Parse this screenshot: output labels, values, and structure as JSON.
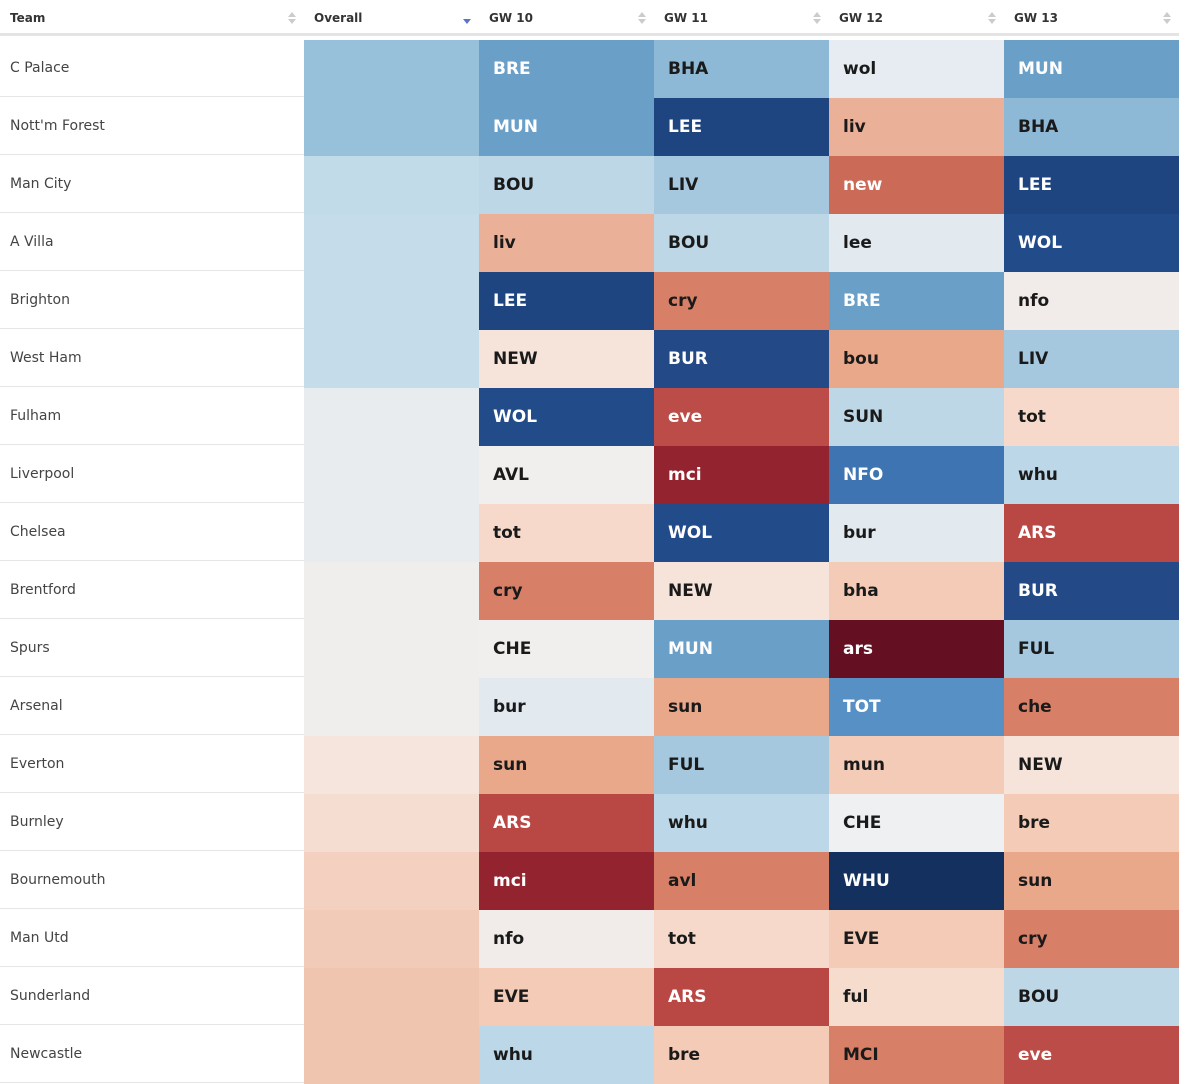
{
  "table": {
    "headers": [
      "Team",
      "Overall",
      "GW 10",
      "GW 11",
      "GW 12",
      "GW 13"
    ],
    "sorted_column": 1,
    "rows": [
      {
        "team": "C Palace",
        "overall_color": "#97c0da",
        "fixtures": [
          {
            "label": "BRE",
            "color": "#6a9fc8"
          },
          {
            "label": "BHA",
            "color": "#8db8d6"
          },
          {
            "label": "wol",
            "color": "#e6ecf1"
          },
          {
            "label": "MUN",
            "color": "#6a9fc8"
          }
        ]
      },
      {
        "team": "Nott'm Forest",
        "overall_color": "#97c0da",
        "fixtures": [
          {
            "label": "MUN",
            "color": "#6a9fc8"
          },
          {
            "label": "LEE",
            "color": "#1f4580"
          },
          {
            "label": "liv",
            "color": "#ebb198"
          },
          {
            "label": "BHA",
            "color": "#8db8d6"
          }
        ]
      },
      {
        "team": "Man City",
        "overall_color": "#c2dbe9",
        "fixtures": [
          {
            "label": "BOU",
            "color": "#bdd7e7"
          },
          {
            "label": "LIV",
            "color": "#a6c8df"
          },
          {
            "label": "new",
            "color": "#cc6a58"
          },
          {
            "label": "LEE",
            "color": "#1f4580"
          }
        ]
      },
      {
        "team": "A Villa",
        "overall_color": "#c5dcea",
        "fixtures": [
          {
            "label": "liv",
            "color": "#ebb198"
          },
          {
            "label": "BOU",
            "color": "#bdd7e7"
          },
          {
            "label": "lee",
            "color": "#e2eaf0"
          },
          {
            "label": "WOL",
            "color": "#224b8a"
          }
        ]
      },
      {
        "team": "Brighton",
        "overall_color": "#c5dcea",
        "fixtures": [
          {
            "label": "LEE",
            "color": "#1f4580"
          },
          {
            "label": "cry",
            "color": "#d88067"
          },
          {
            "label": "BRE",
            "color": "#6a9fc8"
          },
          {
            "label": "nfo",
            "color": "#f1ece9"
          }
        ]
      },
      {
        "team": "West Ham",
        "overall_color": "#c5dcea",
        "fixtures": [
          {
            "label": "NEW",
            "color": "#f6e3da"
          },
          {
            "label": "BUR",
            "color": "#234a86"
          },
          {
            "label": "bou",
            "color": "#eaa88b"
          },
          {
            "label": "LIV",
            "color": "#a6c8df"
          }
        ]
      },
      {
        "team": "Fulham",
        "overall_color": "#e8ecef",
        "fixtures": [
          {
            "label": "WOL",
            "color": "#224b8a"
          },
          {
            "label": "eve",
            "color": "#bc4c47"
          },
          {
            "label": "SUN",
            "color": "#bdd7e7"
          },
          {
            "label": "tot",
            "color": "#f6d9ca"
          }
        ]
      },
      {
        "team": "Liverpool",
        "overall_color": "#e8ecef",
        "fixtures": [
          {
            "label": "AVL",
            "color": "#f1efee"
          },
          {
            "label": "mci",
            "color": "#93242f"
          },
          {
            "label": "NFO",
            "color": "#3f74b2"
          },
          {
            "label": "whu",
            "color": "#bcd7e7"
          }
        ]
      },
      {
        "team": "Chelsea",
        "overall_color": "#e8ecef",
        "fixtures": [
          {
            "label": "tot",
            "color": "#f6d9ca"
          },
          {
            "label": "WOL",
            "color": "#224b8a"
          },
          {
            "label": "bur",
            "color": "#e2eaf0"
          },
          {
            "label": "ARS",
            "color": "#b94845"
          }
        ]
      },
      {
        "team": "Brentford",
        "overall_color": "#efeeed",
        "fixtures": [
          {
            "label": "cry",
            "color": "#d88067"
          },
          {
            "label": "NEW",
            "color": "#f6e3da"
          },
          {
            "label": "bha",
            "color": "#f3cbb6"
          },
          {
            "label": "BUR",
            "color": "#234a86"
          }
        ]
      },
      {
        "team": "Spurs",
        "overall_color": "#efeeed",
        "fixtures": [
          {
            "label": "CHE",
            "color": "#f1efee"
          },
          {
            "label": "MUN",
            "color": "#6a9fc8"
          },
          {
            "label": "ars",
            "color": "#640f22"
          },
          {
            "label": "FUL",
            "color": "#a6c8df"
          }
        ]
      },
      {
        "team": "Arsenal",
        "overall_color": "#efeeed",
        "fixtures": [
          {
            "label": "bur",
            "color": "#e2eaf0"
          },
          {
            "label": "sun",
            "color": "#eaa88b"
          },
          {
            "label": "TOT",
            "color": "#5690c4"
          },
          {
            "label": "che",
            "color": "#d88067"
          }
        ]
      },
      {
        "team": "Everton",
        "overall_color": "#f6e5dd",
        "fixtures": [
          {
            "label": "sun",
            "color": "#eaa88b"
          },
          {
            "label": "FUL",
            "color": "#a6c8df"
          },
          {
            "label": "mun",
            "color": "#f3cbb6"
          },
          {
            "label": "NEW",
            "color": "#f6e3da"
          }
        ]
      },
      {
        "team": "Burnley",
        "overall_color": "#f5ddd1",
        "fixtures": [
          {
            "label": "ARS",
            "color": "#b94845"
          },
          {
            "label": "whu",
            "color": "#bcd7e7"
          },
          {
            "label": "CHE",
            "color": "#eff0f1"
          },
          {
            "label": "bre",
            "color": "#f3cbb6"
          }
        ]
      },
      {
        "team": "Bournemouth",
        "overall_color": "#f3d0c0",
        "fixtures": [
          {
            "label": "mci",
            "color": "#93242f"
          },
          {
            "label": "avl",
            "color": "#d88067"
          },
          {
            "label": "WHU",
            "color": "#14305f"
          },
          {
            "label": "sun",
            "color": "#eaa88b"
          }
        ]
      },
      {
        "team": "Man Utd",
        "overall_color": "#f2cbb8",
        "fixtures": [
          {
            "label": "nfo",
            "color": "#f1ece9"
          },
          {
            "label": "tot",
            "color": "#f6d9ca"
          },
          {
            "label": "EVE",
            "color": "#f3cbb6"
          },
          {
            "label": "cry",
            "color": "#d88067"
          }
        ]
      },
      {
        "team": "Sunderland",
        "overall_color": "#f0c5b0",
        "fixtures": [
          {
            "label": "EVE",
            "color": "#f3cbb6"
          },
          {
            "label": "ARS",
            "color": "#b94845"
          },
          {
            "label": "ful",
            "color": "#f6dccd"
          },
          {
            "label": "BOU",
            "color": "#bdd7e7"
          }
        ]
      },
      {
        "team": "Newcastle",
        "overall_color": "#f0c5b0",
        "fixtures": [
          {
            "label": "whu",
            "color": "#bcd7e7"
          },
          {
            "label": "bre",
            "color": "#f3cbb6"
          },
          {
            "label": "MCI",
            "color": "#d88067"
          },
          {
            "label": "eve",
            "color": "#bc4c47"
          }
        ]
      }
    ]
  }
}
